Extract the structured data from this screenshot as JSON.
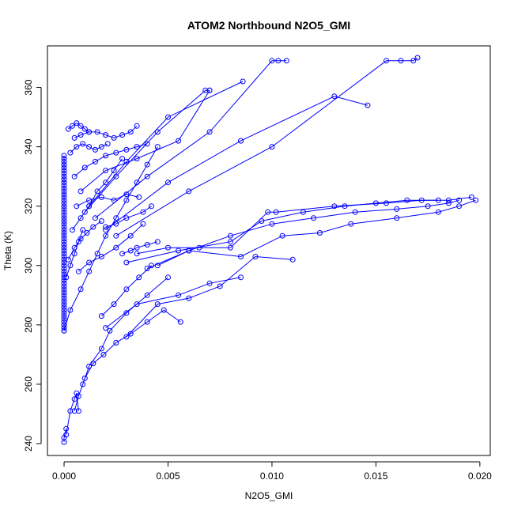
{
  "chart_data": {
    "type": "scatter",
    "title": "ATOM2 Northbound N2O5_GMI",
    "xlabel": "N2O5_GMI",
    "ylabel": "Theta (K)",
    "xlim": [
      -0.0008,
      0.0205
    ],
    "ylim": [
      236,
      374
    ],
    "x_ticks": [
      0.0,
      0.005,
      0.01,
      0.015,
      0.02
    ],
    "x_tick_labels": [
      "0.000",
      "0.005",
      "0.010",
      "0.015",
      "0.020"
    ],
    "y_ticks": [
      240,
      260,
      280,
      300,
      320,
      340,
      360
    ],
    "y_tick_labels": [
      "240",
      "260",
      "280",
      "300",
      "320",
      "340",
      "360"
    ],
    "marker": "open-circle",
    "line_style": "connected",
    "color": "#0000ff",
    "grid": false,
    "series": [
      {
        "x": [
          0.0,
          0.0,
          0.0,
          0.0,
          0.0,
          0.0,
          0.0,
          0.0,
          0.0,
          0.0,
          0.0,
          0.0,
          0.0,
          0.0,
          0.0,
          0.0,
          0.0,
          0.0,
          0.0,
          0.0,
          0.0,
          0.0,
          0.0,
          0.0,
          0.0,
          0.0,
          0.0,
          0.0,
          0.0,
          0.0,
          0.0,
          0.0,
          0.0,
          0.0,
          0.0,
          0.0,
          0.0,
          0.0,
          0.0,
          0.0,
          0.0,
          0.0,
          0.0,
          0.0,
          0.0,
          0.0,
          0.0,
          0.0,
          0.0,
          0.0,
          0.0,
          0.0,
          0.0,
          0.0,
          0.0,
          0.0,
          0.0,
          0.0,
          0.0,
          0.0
        ],
        "y": [
          278,
          279,
          280,
          281,
          282,
          283,
          284,
          285,
          286,
          287,
          288,
          289,
          290,
          291,
          292,
          293,
          294,
          295,
          296,
          297,
          298,
          299,
          300,
          301,
          302,
          303,
          304,
          305,
          306,
          307,
          308,
          309,
          310,
          311,
          312,
          313,
          314,
          315,
          316,
          317,
          318,
          319,
          320,
          321,
          322,
          323,
          324,
          325,
          326,
          327,
          328,
          329,
          330,
          331,
          332,
          333,
          334,
          335,
          336,
          337
        ]
      },
      {
        "x": [
          0.0,
          0.0003,
          0.0008,
          0.0012,
          0.0016,
          0.002,
          0.0025,
          0.003,
          0.0035,
          0.004,
          0.0045
        ],
        "y": [
          278,
          285,
          292,
          298,
          304,
          310,
          316,
          322,
          328,
          334,
          340
        ]
      },
      {
        "x": [
          0.0001,
          0.0003,
          0.0005,
          0.0006,
          0.0007
        ],
        "y": [
          243,
          251,
          255,
          257,
          251
        ]
      },
      {
        "x": [
          0.0,
          0.0,
          0.0001
        ],
        "y": [
          240.5,
          242,
          245
        ]
      },
      {
        "x": [
          0.0005,
          0.0007,
          0.0009,
          0.0012,
          0.0018,
          0.0022,
          0.003,
          0.004,
          0.005
        ],
        "y": [
          251,
          256,
          260,
          266,
          272,
          278,
          284,
          290,
          296
        ]
      },
      {
        "x": [
          0.001,
          0.0014,
          0.0019,
          0.0025,
          0.0032,
          0.004,
          0.0048,
          0.0056
        ],
        "y": [
          262,
          267,
          270,
          274,
          277,
          281,
          285,
          281
        ]
      },
      {
        "x": [
          0.0018,
          0.0024,
          0.003,
          0.0036,
          0.0042
        ],
        "y": [
          283,
          287,
          292,
          296,
          300
        ]
      },
      {
        "x": [
          0.002,
          0.0035,
          0.0055,
          0.007,
          0.0085
        ],
        "y": [
          279,
          287,
          290,
          294,
          296
        ]
      },
      {
        "x": [
          0.003,
          0.0045,
          0.006,
          0.0075,
          0.0092,
          0.011
        ],
        "y": [
          276,
          287,
          289,
          293,
          303,
          302
        ]
      },
      {
        "x": [
          0.004,
          0.006,
          0.0085,
          0.0105,
          0.0123,
          0.0138,
          0.016,
          0.018,
          0.019,
          0.0198
        ],
        "y": [
          299,
          305,
          303,
          310,
          311,
          314,
          316,
          318,
          320,
          322
        ]
      },
      {
        "x": [
          0.0045,
          0.006,
          0.008,
          0.01,
          0.012,
          0.014,
          0.016,
          0.0175,
          0.0185,
          0.019
        ],
        "y": [
          300,
          305,
          310,
          314,
          316,
          318,
          319,
          320,
          321,
          322
        ]
      },
      {
        "x": [
          0.003,
          0.0055,
          0.008,
          0.0095,
          0.0115,
          0.0135,
          0.015,
          0.0165,
          0.018
        ],
        "y": [
          301,
          305,
          308,
          315,
          318,
          320,
          321,
          322,
          322
        ]
      },
      {
        "x": [
          0.0035,
          0.005,
          0.0065,
          0.008,
          0.0098,
          0.0102,
          0.013,
          0.0155,
          0.0172,
          0.0185,
          0.0196
        ],
        "y": [
          304,
          306,
          306,
          306,
          318,
          318,
          320,
          321,
          322,
          322,
          323
        ]
      },
      {
        "x": [
          0.0028,
          0.0032,
          0.0035,
          0.004,
          0.0045
        ],
        "y": [
          304,
          305,
          306,
          307,
          308
        ]
      },
      {
        "x": [
          0.002,
          0.0025,
          0.003,
          0.0038,
          0.0042
        ],
        "y": [
          313,
          314,
          316,
          318,
          320
        ]
      },
      {
        "x": [
          0.0006,
          0.0012,
          0.0018,
          0.0024,
          0.003,
          0.0036
        ],
        "y": [
          320,
          322,
          323,
          322,
          324,
          323
        ]
      },
      {
        "x": [
          0.0008,
          0.002,
          0.0035,
          0.0055,
          0.007
        ],
        "y": [
          325,
          332,
          336,
          342,
          359
        ]
      },
      {
        "x": [
          0.001,
          0.0025,
          0.0045,
          0.0068,
          0.007
        ],
        "y": [
          318,
          330,
          345,
          359,
          359
        ]
      },
      {
        "x": [
          0.0012,
          0.003,
          0.005,
          0.0086
        ],
        "y": [
          320,
          335,
          350,
          362
        ]
      },
      {
        "x": [
          0.0015,
          0.004,
          0.007,
          0.01,
          0.0103,
          0.0107
        ],
        "y": [
          316,
          330,
          345,
          369,
          369,
          369
        ]
      },
      {
        "x": [
          0.002,
          0.005,
          0.0085,
          0.013,
          0.0146
        ],
        "y": [
          312,
          328,
          342,
          357,
          354
        ]
      },
      {
        "x": [
          0.0025,
          0.006,
          0.01,
          0.0155,
          0.0162,
          0.0168,
          0.017
        ],
        "y": [
          310,
          325,
          340,
          369,
          369,
          369,
          370
        ]
      },
      {
        "x": [
          0.0005,
          0.0008,
          0.0012,
          0.0016,
          0.002,
          0.0024,
          0.0028,
          0.0032,
          0.0035
        ],
        "y": [
          343,
          344,
          345,
          345,
          344,
          343,
          344,
          345,
          347
        ]
      },
      {
        "x": [
          0.0002,
          0.0004,
          0.0006,
          0.0008,
          0.001,
          0.0012
        ],
        "y": [
          346,
          347,
          348,
          347,
          346,
          345
        ]
      },
      {
        "x": [
          0.0003,
          0.0006,
          0.0009,
          0.0012,
          0.0015,
          0.0018,
          0.0021
        ],
        "y": [
          338,
          340,
          341,
          340,
          339,
          340,
          341
        ]
      },
      {
        "x": [
          0.0005,
          0.001,
          0.0015,
          0.002,
          0.0025,
          0.003,
          0.0035,
          0.004
        ],
        "y": [
          330,
          333,
          335,
          337,
          338,
          339,
          340,
          341
        ]
      },
      {
        "x": [
          0.0004,
          0.0008,
          0.0012,
          0.0016,
          0.002,
          0.0024,
          0.0028
        ],
        "y": [
          312,
          316,
          320,
          325,
          328,
          332,
          336
        ]
      },
      {
        "x": [
          0.0001,
          0.0003,
          0.0005,
          0.0007,
          0.0009
        ],
        "y": [
          296,
          300,
          304,
          308,
          312
        ]
      },
      {
        "x": [
          0.0002,
          0.0005,
          0.0008,
          0.0011,
          0.0014,
          0.0018
        ],
        "y": [
          302,
          306,
          309,
          311,
          313,
          315
        ]
      },
      {
        "x": [
          0.0007,
          0.0012,
          0.0018,
          0.0025,
          0.0032,
          0.0038
        ],
        "y": [
          298,
          301,
          303,
          306,
          310,
          314
        ]
      }
    ]
  }
}
